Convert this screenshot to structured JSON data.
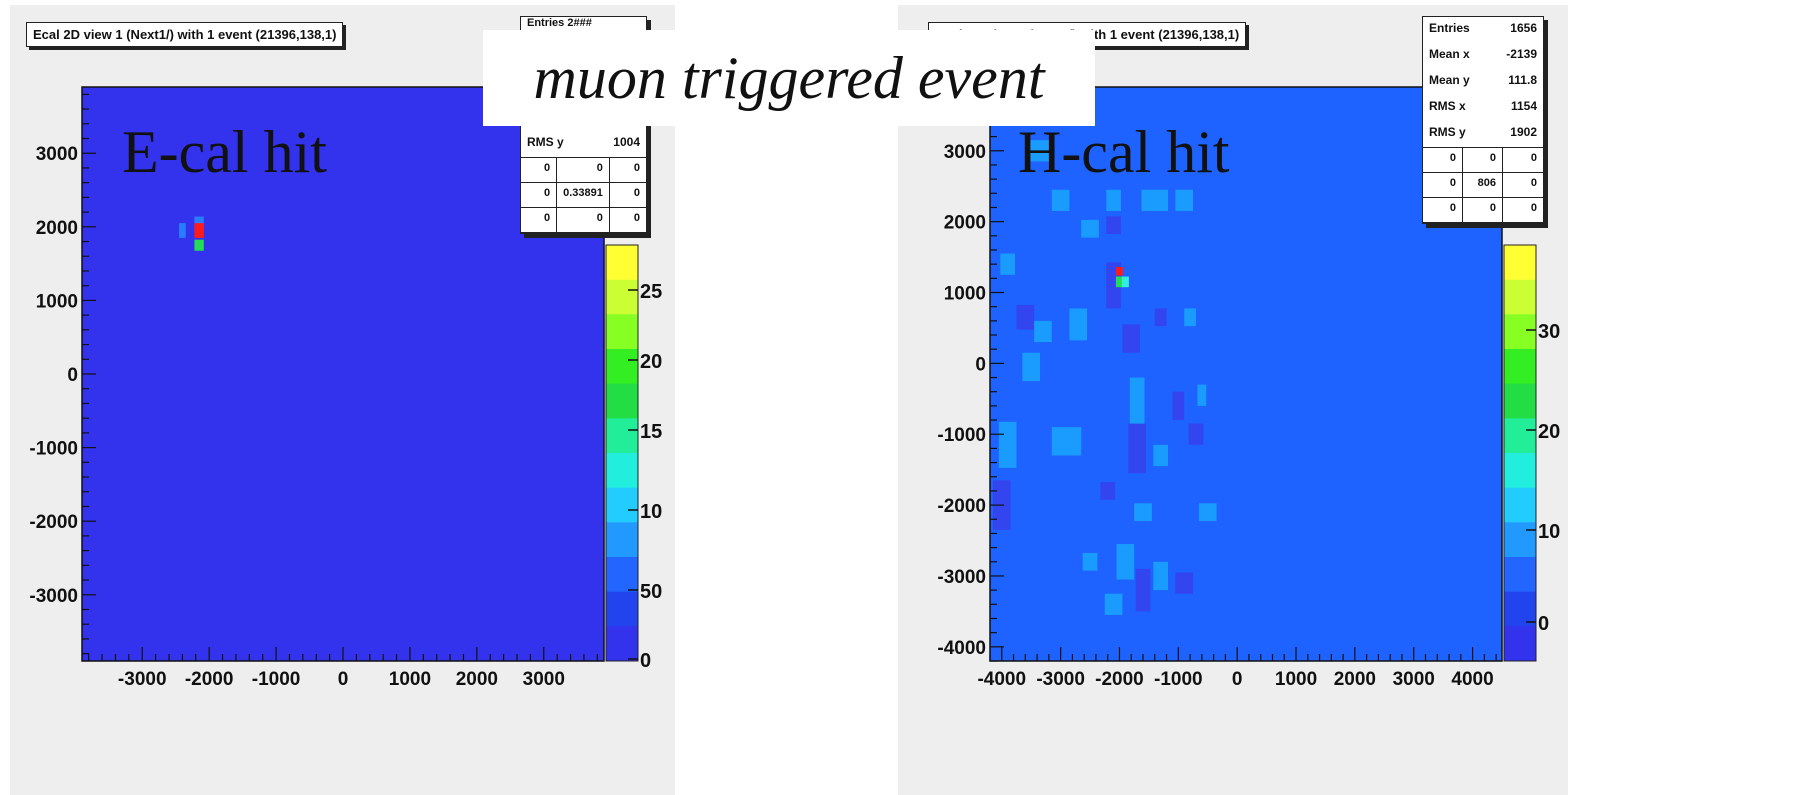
{
  "headline": "muon triggered event",
  "panels": [
    {
      "title": "Ecal 2D view 1 (Next1/) with 1 event  (21396,138,1)",
      "label": "E-cal hit",
      "stats": {
        "top_partial": "Entries     2###",
        "rows": [
          {
            "k": "RMS y",
            "v": "1004"
          }
        ],
        "grid": [
          "0",
          "0",
          "0",
          "0",
          "0.33891",
          "0",
          "0",
          "0",
          "0"
        ]
      },
      "palette_labels": [
        "25",
        "20",
        "15",
        "10",
        "50",
        "0"
      ]
    },
    {
      "title": "Hcal 2D view 1 (Next1/) with 1 event  (21396,138,1)",
      "label": "H-cal hit",
      "stats": {
        "rows": [
          {
            "k": "Entries",
            "v": "1656"
          },
          {
            "k": "Mean x",
            "v": "-2139"
          },
          {
            "k": "Mean y",
            "v": "111.8"
          },
          {
            "k": "RMS x",
            "v": "1154"
          },
          {
            "k": "RMS y",
            "v": "1902"
          }
        ],
        "grid": [
          "0",
          "0",
          "0",
          "0",
          "806",
          "0",
          "0",
          "0",
          "0"
        ]
      },
      "palette_labels": [
        "30",
        "20",
        "10",
        "0"
      ]
    }
  ],
  "chart_data": [
    {
      "type": "heatmap",
      "title": "Ecal 2D view 1 (Next1/) with 1 event  (21396,138,1)",
      "xlim": [
        -3900,
        3900
      ],
      "ylim": [
        -3900,
        3900
      ],
      "x_ticks": [
        "-3000",
        "-2000",
        "-1000",
        "0",
        "1000",
        "2000",
        "3000"
      ],
      "y_ticks": [
        "3000",
        "2000",
        "1000",
        "0",
        "-1000",
        "-2000",
        "-3000"
      ],
      "x_tick_values": [
        -3000,
        -2000,
        -1000,
        0,
        1000,
        2000,
        3000
      ],
      "y_tick_values": [
        3000,
        2000,
        1000,
        0,
        -1000,
        -2000,
        -3000
      ],
      "background_color": "#3333ee",
      "cells": [
        {
          "x": -2400,
          "y": 1950,
          "w": 100,
          "h": 200,
          "color": "#2a7cff"
        },
        {
          "x": -2150,
          "y": 2050,
          "w": 140,
          "h": 180,
          "color": "#2a7cff"
        },
        {
          "x": -2150,
          "y": 1950,
          "w": 140,
          "h": 200,
          "color": "#ff1a1a"
        },
        {
          "x": -2150,
          "y": 1750,
          "w": 140,
          "h": 150,
          "color": "#22dd55"
        }
      ],
      "palette_values": [
        25,
        20,
        15,
        10,
        50,
        0
      ]
    },
    {
      "type": "heatmap",
      "title": "Hcal 2D view 1 (Next1/) with 1 event  (21396,138,1)",
      "xlim": [
        -4200,
        4500
      ],
      "ylim": [
        -4200,
        3900
      ],
      "x_ticks": [
        "-4000",
        "-3000",
        "-2000",
        "-1000",
        "0",
        "1000",
        "2000",
        "3000",
        "4000"
      ],
      "y_ticks": [
        "3000",
        "2000",
        "1000",
        "0",
        "-1000",
        "-2000",
        "-3000",
        "-4000"
      ],
      "x_tick_values": [
        -4000,
        -3000,
        -2000,
        -1000,
        0,
        1000,
        2000,
        3000,
        4000
      ],
      "y_tick_values": [
        3000,
        2000,
        1000,
        0,
        -1000,
        -2000,
        -3000,
        -4000
      ],
      "background_color": "#1e63ff",
      "cells": [
        {
          "x": -3400,
          "y": 3000,
          "w": 400,
          "h": 300,
          "color": "#1a9cff"
        },
        {
          "x": -3000,
          "y": 2300,
          "w": 300,
          "h": 300,
          "color": "#1a9cff"
        },
        {
          "x": -2100,
          "y": 2300,
          "w": 250,
          "h": 300,
          "color": "#1a9cff"
        },
        {
          "x": -1400,
          "y": 2300,
          "w": 450,
          "h": 300,
          "color": "#1a9cff"
        },
        {
          "x": -900,
          "y": 2300,
          "w": 300,
          "h": 300,
          "color": "#1a9cff"
        },
        {
          "x": -2500,
          "y": 1900,
          "w": 300,
          "h": 250,
          "color": "#1a9cff"
        },
        {
          "x": -2100,
          "y": 1950,
          "w": 250,
          "h": 250,
          "color": "#3345ee"
        },
        {
          "x": -3900,
          "y": 1400,
          "w": 250,
          "h": 300,
          "color": "#1a9cff"
        },
        {
          "x": -2100,
          "y": 1100,
          "w": 250,
          "h": 650,
          "color": "#3345ee"
        },
        {
          "x": -3600,
          "y": 650,
          "w": 300,
          "h": 350,
          "color": "#3345ee"
        },
        {
          "x": -3300,
          "y": 450,
          "w": 300,
          "h": 300,
          "color": "#1a9cff"
        },
        {
          "x": -2700,
          "y": 550,
          "w": 300,
          "h": 450,
          "color": "#1a9cff"
        },
        {
          "x": -1800,
          "y": 350,
          "w": 300,
          "h": 400,
          "color": "#3345ee"
        },
        {
          "x": -1300,
          "y": 650,
          "w": 200,
          "h": 250,
          "color": "#3345ee"
        },
        {
          "x": -800,
          "y": 650,
          "w": 200,
          "h": 250,
          "color": "#1a9cff"
        },
        {
          "x": -3500,
          "y": -50,
          "w": 300,
          "h": 400,
          "color": "#1a9cff"
        },
        {
          "x": -1700,
          "y": -550,
          "w": 250,
          "h": 700,
          "color": "#1a9cff"
        },
        {
          "x": -1000,
          "y": -600,
          "w": 200,
          "h": 400,
          "color": "#3345ee"
        },
        {
          "x": -600,
          "y": -450,
          "w": 150,
          "h": 300,
          "color": "#1a9cff"
        },
        {
          "x": -3900,
          "y": -1150,
          "w": 300,
          "h": 650,
          "color": "#1a9cff"
        },
        {
          "x": -2900,
          "y": -1100,
          "w": 500,
          "h": 400,
          "color": "#1a9cff"
        },
        {
          "x": -1700,
          "y": -1200,
          "w": 300,
          "h": 700,
          "color": "#3345ee"
        },
        {
          "x": -1300,
          "y": -1300,
          "w": 250,
          "h": 300,
          "color": "#1a9cff"
        },
        {
          "x": -700,
          "y": -1000,
          "w": 250,
          "h": 300,
          "color": "#3345ee"
        },
        {
          "x": -2200,
          "y": -1800,
          "w": 250,
          "h": 250,
          "color": "#3345ee"
        },
        {
          "x": -4000,
          "y": -2000,
          "w": 300,
          "h": 700,
          "color": "#3345ee"
        },
        {
          "x": -1600,
          "y": -2100,
          "w": 300,
          "h": 250,
          "color": "#1a9cff"
        },
        {
          "x": -500,
          "y": -2100,
          "w": 300,
          "h": 250,
          "color": "#1a9cff"
        },
        {
          "x": -1900,
          "y": -2800,
          "w": 300,
          "h": 500,
          "color": "#1a9cff"
        },
        {
          "x": -2500,
          "y": -2800,
          "w": 250,
          "h": 250,
          "color": "#1a9cff"
        },
        {
          "x": -1300,
          "y": -3000,
          "w": 250,
          "h": 400,
          "color": "#1a9cff"
        },
        {
          "x": -1600,
          "y": -3200,
          "w": 250,
          "h": 600,
          "color": "#3345ee"
        },
        {
          "x": -900,
          "y": -3100,
          "w": 300,
          "h": 300,
          "color": "#3345ee"
        },
        {
          "x": -2100,
          "y": -3400,
          "w": 300,
          "h": 300,
          "color": "#1a9cff"
        },
        {
          "x": -2000,
          "y": 1300,
          "w": 120,
          "h": 120,
          "color": "#ff1a1a"
        },
        {
          "x": -2000,
          "y": 1150,
          "w": 120,
          "h": 150,
          "color": "#22dd55"
        },
        {
          "x": -1900,
          "y": 1150,
          "w": 120,
          "h": 150,
          "color": "#33eedd"
        }
      ],
      "palette_values": [
        30,
        20,
        10,
        0
      ]
    }
  ]
}
